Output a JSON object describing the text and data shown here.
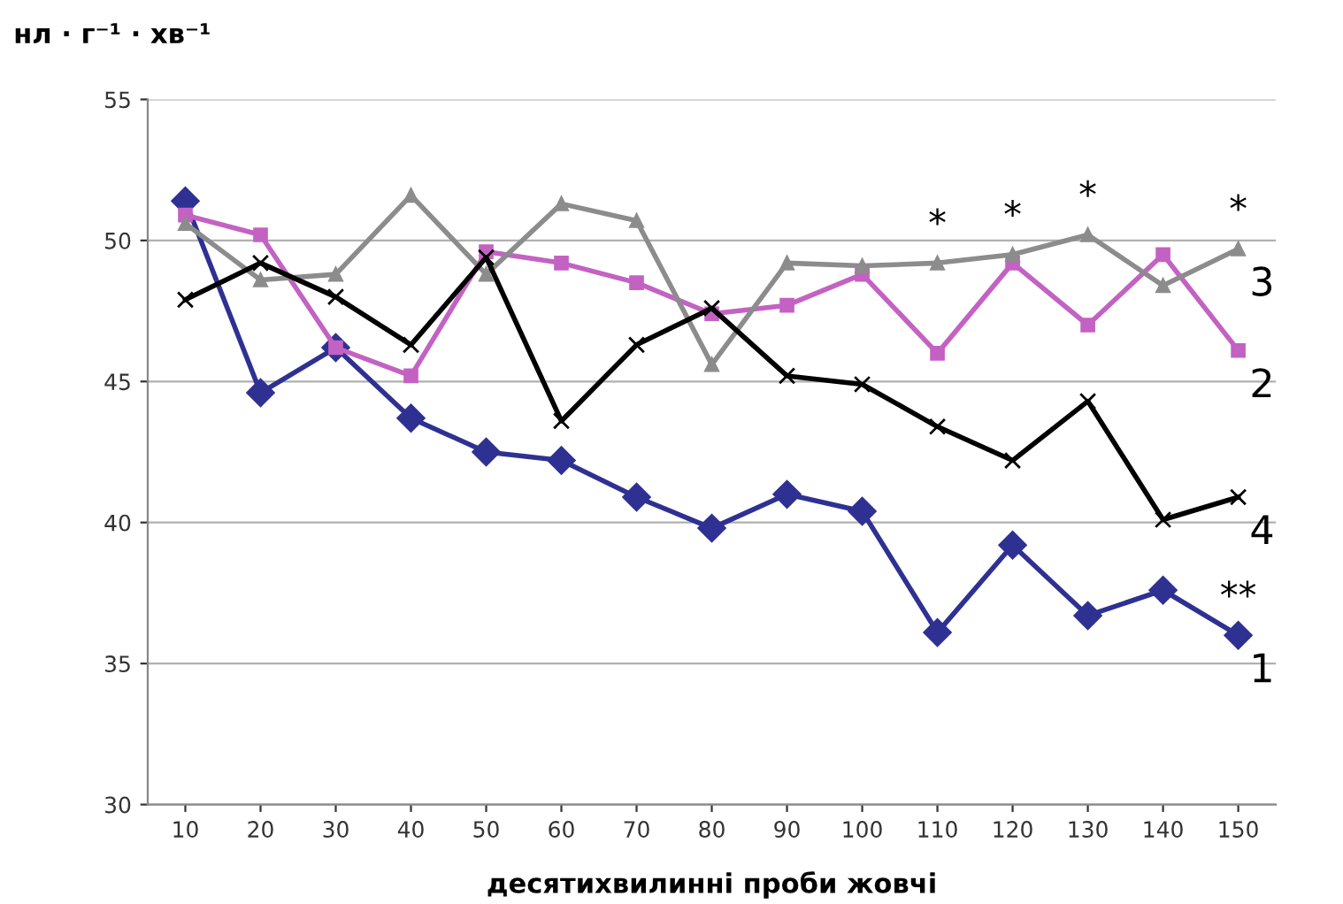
{
  "chart_data": {
    "type": "line",
    "ylabel": "нл · г⁻¹ · хв⁻¹",
    "xlabel": "десятихвилинні проби жовчі",
    "categories": [
      "10",
      "20",
      "30",
      "40",
      "50",
      "60",
      "70",
      "80",
      "90",
      "100",
      "110",
      "120",
      "130",
      "140",
      "150"
    ],
    "ylim": [
      30,
      55
    ],
    "yticks": [
      30,
      35,
      40,
      45,
      50,
      55
    ],
    "grid": "y",
    "legend": false,
    "series": [
      {
        "name": "1",
        "color": "#2e3192",
        "marker": "diamond",
        "values": [
          51.4,
          44.6,
          46.2,
          43.7,
          42.5,
          42.2,
          40.9,
          39.8,
          41.0,
          40.4,
          36.1,
          39.2,
          36.7,
          37.6,
          36.0
        ]
      },
      {
        "name": "2",
        "color": "#c362c3",
        "marker": "square",
        "values": [
          50.9,
          50.2,
          46.2,
          45.2,
          49.6,
          49.2,
          48.5,
          47.4,
          47.7,
          48.8,
          46.0,
          49.2,
          47.0,
          49.5,
          46.1
        ]
      },
      {
        "name": "3",
        "color": "#8c8c8c",
        "marker": "triangle",
        "values": [
          50.6,
          48.6,
          48.8,
          51.6,
          48.8,
          51.3,
          50.7,
          45.6,
          49.2,
          49.1,
          49.2,
          49.5,
          50.2,
          48.4,
          49.7
        ]
      },
      {
        "name": "4",
        "color": "#000000",
        "marker": "cross",
        "values": [
          47.9,
          49.2,
          48.0,
          46.3,
          49.4,
          43.6,
          46.3,
          47.6,
          45.2,
          44.9,
          43.4,
          42.2,
          44.3,
          40.1,
          40.9
        ]
      }
    ],
    "annotations": [
      {
        "text": "*",
        "x": "110",
        "y": 49.2
      },
      {
        "text": "*",
        "x": "120",
        "y": 49.5
      },
      {
        "text": "*",
        "x": "130",
        "y": 50.2
      },
      {
        "text": "*",
        "x": "150",
        "y": 49.7
      },
      {
        "text": "**",
        "x": "150",
        "y": 36.0
      }
    ]
  }
}
